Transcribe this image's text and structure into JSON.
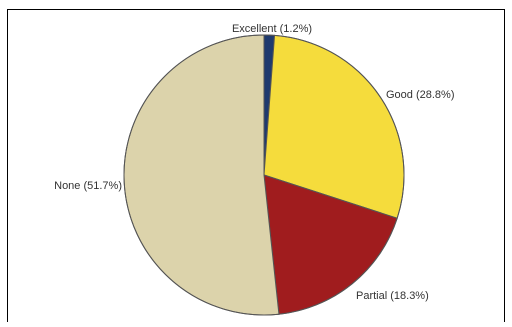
{
  "chart_data": {
    "type": "pie",
    "title": "",
    "slices": [
      {
        "label": "Excellent (1.2%)",
        "value": 1.2,
        "color": "#1f3a6e"
      },
      {
        "label": "Good (28.8%)",
        "value": 28.8,
        "color": "#f5dc3c"
      },
      {
        "label": "Partial (18.3%)",
        "value": 18.3,
        "color": "#a01c1e"
      },
      {
        "label": "None (51.7%)",
        "value": 51.7,
        "color": "#dcd3ab"
      }
    ],
    "start_angle_deg": 0,
    "direction": "clockwise",
    "legend": "none",
    "slice_stroke_color": "#555555",
    "frame_color": "#000000"
  }
}
